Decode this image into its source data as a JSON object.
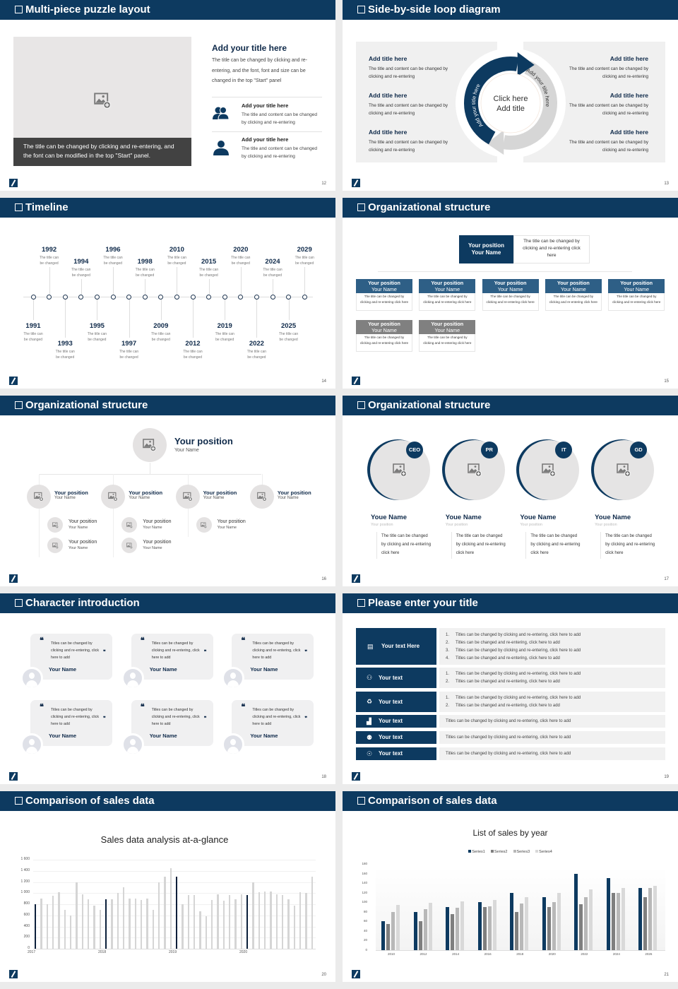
{
  "slides": [
    {
      "title": "Multi-piece puzzle layout",
      "page": "12",
      "image_caption": "The title can be changed by clicking and re-entering, and the font can be modified in the top \"Start\" panel.",
      "heading": "Add your title here",
      "paragraph": "The title can be changed by clicking and re-entering, and the font, font and size can be changed in the top \"Start\" panel",
      "items": [
        {
          "icon": "users-icon",
          "title": "Add your title here",
          "text": "The title and content can be changed by clicking and re-entering"
        },
        {
          "icon": "user-icon",
          "title": "Add your title here",
          "text": "The title and content can be changed by clicking and re-entering"
        }
      ]
    },
    {
      "title": "Side-by-side loop diagram",
      "page": "13",
      "left": [
        {
          "title": "Add title here",
          "text": "The title and content can be changed by clicking and re-entering"
        },
        {
          "title": "Add title here",
          "text": "The title and content can be changed by clicking and re-entering"
        },
        {
          "title": "Add title here",
          "text": "The title and content can be changed by clicking and re-entering"
        }
      ],
      "right": [
        {
          "title": "Add title here",
          "text": "The title and content can be changed by clicking and re-entering"
        },
        {
          "title": "Add title here",
          "text": "The title and content can be changed by clicking and re-entering"
        },
        {
          "title": "Add title here",
          "text": "The title and content can be changed by clicking and re-entering"
        }
      ],
      "center_line1": "Click here",
      "center_line2": "Add title",
      "arc_left": "Add your title here",
      "arc_right": "Add your title here"
    },
    {
      "title": "Timeline",
      "page": "14",
      "events": [
        {
          "year": "1991",
          "text": "The title can be changed"
        },
        {
          "year": "1992",
          "text": "The title can be changed"
        },
        {
          "year": "1993",
          "text": "The title can be changed"
        },
        {
          "year": "1994",
          "text": "The title can be changed"
        },
        {
          "year": "1995",
          "text": "The title can be changed"
        },
        {
          "year": "1996",
          "text": "The title can be changed"
        },
        {
          "year": "1997",
          "text": "The title can be changed"
        },
        {
          "year": "1998",
          "text": "The title can be changed"
        },
        {
          "year": "2009",
          "text": "The title can be changed"
        },
        {
          "year": "2010",
          "text": "The title can be changed"
        },
        {
          "year": "2012",
          "text": "The title can be changed"
        },
        {
          "year": "2015",
          "text": "The title can be changed"
        },
        {
          "year": "2019",
          "text": "The title can be changed"
        },
        {
          "year": "2020",
          "text": "The title can be changed"
        },
        {
          "year": "2022",
          "text": "The title can be changed"
        },
        {
          "year": "2024",
          "text": "The title can be changed"
        },
        {
          "year": "2025",
          "text": "The title can be changed"
        },
        {
          "year": "2029",
          "text": "The title can be changed"
        }
      ]
    },
    {
      "title": "Organizational structure",
      "page": "15",
      "top": {
        "position": "Your position",
        "name": "Your Name",
        "text": "The title can be changed by clicking and re-entering click here"
      },
      "row1": [
        {
          "position": "Your position",
          "name": "Your Name",
          "text": "The title can be changed by clicking and re-entering click here"
        },
        {
          "position": "Your position",
          "name": "Your Name",
          "text": "The title can be changed by clicking and re-entering click here"
        },
        {
          "position": "Your position",
          "name": "Your Name",
          "text": "The title can be changed by clicking and re-entering click here"
        },
        {
          "position": "Your position",
          "name": "Your Name",
          "text": "The title can be changed by clicking and re-entering click here"
        },
        {
          "position": "Your position",
          "name": "Your Name",
          "text": "The title can be changed by clicking and re-entering click here"
        }
      ],
      "row2": [
        {
          "position": "Your position",
          "name": "Your Name",
          "text": "The title can be changed by clicking and re-entering click here"
        },
        {
          "position": "Your position",
          "name": "Your Name",
          "text": "The title can be changed by clicking and re-entering click here"
        }
      ],
      "colors": {
        "primary": "#0d3a60",
        "secondary": "#2e5f86",
        "muted": "#808080"
      }
    },
    {
      "title": "Organizational structure",
      "page": "16",
      "top": {
        "position": "Your position",
        "name": "Your Name"
      },
      "level2": [
        {
          "position": "Your position",
          "name": "Your Name",
          "children": [
            {
              "position": "Your position",
              "name": "Your Name"
            },
            {
              "position": "Your position",
              "name": "Your Name"
            }
          ]
        },
        {
          "position": "Your position",
          "name": "Your Name",
          "children": [
            {
              "position": "Your position",
              "name": "Your Name"
            },
            {
              "position": "Your position",
              "name": "Your Name"
            }
          ]
        },
        {
          "position": "Your position",
          "name": "Your Name",
          "children": [
            {
              "position": "Your position",
              "name": "Your Name"
            }
          ]
        },
        {
          "position": "Your position",
          "name": "Your Name",
          "children": []
        }
      ]
    },
    {
      "title": "Organizational structure",
      "page": "17",
      "people": [
        {
          "badge": "CEO",
          "name": "Youe Name",
          "position": "Your position",
          "text": "The title can be changed by clicking and re-entering click here"
        },
        {
          "badge": "PR",
          "name": "Youe Name",
          "position": "Your position",
          "text": "The title can be changed by clicking and re-entering click here"
        },
        {
          "badge": "IT",
          "name": "Youe Name",
          "position": "Your position",
          "text": "The title can be changed by clicking and re-entering click here"
        },
        {
          "badge": "GD",
          "name": "Youe Name",
          "position": "Your position",
          "text": "The title can be changed by clicking and re-entering click here"
        }
      ]
    },
    {
      "title": "Character introduction",
      "page": "18",
      "cards": [
        {
          "quote": "Titles can be changed by clicking and re-entering, click here to add",
          "name": "Your Name"
        },
        {
          "quote": "Titles can be changed by clicking and re-entering, click here to add",
          "name": "Your Name"
        },
        {
          "quote": "Titles can be changed by clicking and re-entering, click here to add",
          "name": "Your Name"
        },
        {
          "quote": "Titles can be changed by clicking and re-entering, click here to add",
          "name": "Your Name"
        },
        {
          "quote": "Titles can be changed by clicking and re-entering, click here to add",
          "name": "Your Name"
        },
        {
          "quote": "Titles can be changed by clicking and re-entering, click here to add",
          "name": "Your Name"
        }
      ]
    },
    {
      "title": "Please enter your title",
      "page": "19",
      "rows": [
        {
          "icon": "presentation-icon",
          "glyph": "▤",
          "label": "Your text Here",
          "items": [
            "Titles can be changed by clicking and re-entering, click here to add",
            "Titles can be changed and re-entering, click here to add",
            "Titles can be changed by clicking and re-entering, click here to add",
            "Titles can be changed and re-entering, click here to add"
          ]
        },
        {
          "icon": "user-card-icon",
          "glyph": "⚇",
          "label": "Your text",
          "items": [
            "Titles can be changed by clicking and re-entering, click here to add",
            "Titles can be changed and re-entering, click here to add"
          ]
        },
        {
          "icon": "recycle-icon",
          "glyph": "♻",
          "label": "Your text",
          "items": [
            "Titles can be changed by clicking and re-entering, click here to add",
            "Titles can be changed and re-entering, click here to add"
          ]
        },
        {
          "icon": "bar-chart-icon",
          "glyph": "▟",
          "label": "Your text",
          "text": "Titles can be changed by clicking and re-entering, click here to add"
        },
        {
          "icon": "team-icon",
          "glyph": "⚉",
          "label": "Your text",
          "text": "Titles can be changed by clicking and re-entering, click here to add"
        },
        {
          "icon": "hand-money-icon",
          "glyph": "☉",
          "label": "Your text",
          "text": "Titles can be changed by clicking and re-entering, click here to add"
        }
      ]
    },
    {
      "title": "Comparison of sales data",
      "page": "20"
    },
    {
      "title": "Comparison of sales data",
      "page": "21"
    }
  ],
  "chart_data": [
    {
      "type": "bar",
      "title": "Sales data analysis at-a-glance",
      "x_tick_labels": [
        "2017",
        "2018",
        "2019",
        "2020"
      ],
      "values": [
        800,
        900,
        800,
        950,
        1010,
        700,
        600,
        1200,
        980,
        890,
        780,
        700,
        890,
        890,
        1000,
        1100,
        900,
        900,
        880,
        900,
        700,
        1200,
        1300,
        1450,
        1300,
        800,
        960,
        970,
        670,
        590,
        870,
        980,
        860,
        960,
        890,
        980,
        960,
        1200,
        1020,
        1030,
        1030,
        980,
        970,
        890,
        780,
        1020,
        1000,
        1300
      ],
      "ylim": [
        0,
        1600
      ],
      "y_ticks": [
        "0",
        "200",
        "400",
        "600",
        "800",
        "1 000",
        "1 200",
        "1 400",
        "1 600"
      ],
      "grid": true,
      "colors": {
        "highlight": "#0b1f3a",
        "bar": "#d5d5d5"
      }
    },
    {
      "type": "bar",
      "title": "List of sales by year",
      "categories": [
        "2010",
        "2012",
        "2014",
        "2016",
        "2018",
        "2020",
        "2022",
        "2024",
        "2026"
      ],
      "series": [
        {
          "name": "Series1",
          "color": "#0d3a60",
          "values": [
            60,
            80,
            90,
            100,
            120,
            110,
            160,
            150,
            130
          ]
        },
        {
          "name": "Series2",
          "color": "#7f7f7f",
          "values": [
            55,
            60,
            75,
            90,
            80,
            90,
            96,
            120,
            110
          ]
        },
        {
          "name": "Series3",
          "color": "#b8b8b8",
          "values": [
            80,
            86,
            88,
            92,
            98,
            100,
            110,
            120,
            130
          ]
        },
        {
          "name": "Series4",
          "color": "#d9d9d9",
          "values": [
            95,
            99,
            102,
            105,
            110,
            120,
            127,
            130,
            135
          ]
        }
      ],
      "ylim": [
        0,
        180
      ],
      "y_ticks": [
        "0",
        "20",
        "40",
        "60",
        "80",
        "100",
        "120",
        "140",
        "160",
        "180"
      ],
      "legend": "top"
    }
  ]
}
